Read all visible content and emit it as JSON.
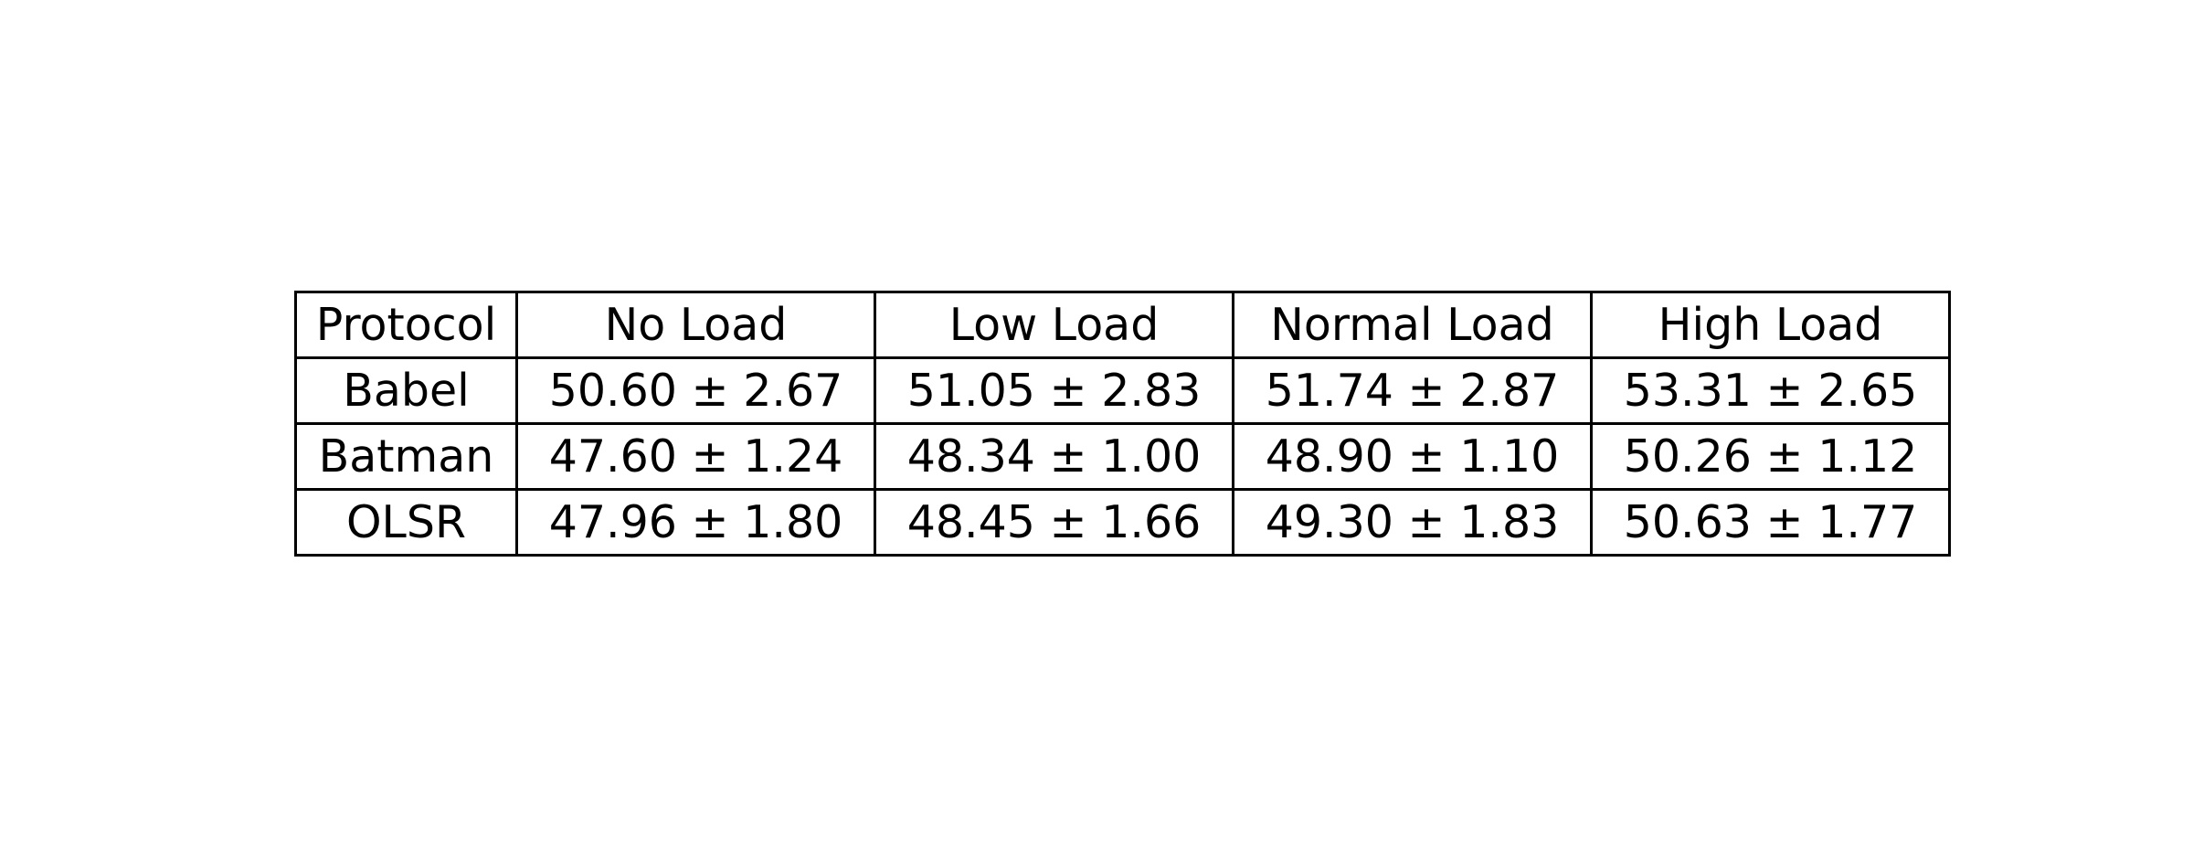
{
  "chart_data": {
    "type": "table",
    "columns": [
      "Protocol",
      "No Load",
      "Low Load",
      "Normal Load",
      "High Load"
    ],
    "rows": [
      [
        "Babel",
        "50.60 ± 2.67",
        "51.05 ± 2.83",
        "51.74 ± 2.87",
        "53.31 ± 2.65"
      ],
      [
        "Batman",
        "47.60 ± 1.24",
        "48.34 ± 1.00",
        "48.90 ± 1.10",
        "50.26 ± 1.12"
      ],
      [
        "OLSR",
        "47.96 ± 1.80",
        "48.45 ± 1.66",
        "49.30 ± 1.83",
        "50.63 ± 1.77"
      ]
    ],
    "border_color": "#000000",
    "text_color": "#000000"
  }
}
